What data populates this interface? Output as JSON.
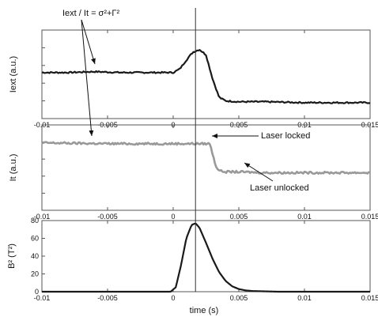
{
  "chart_data": [
    {
      "type": "line",
      "ylabel": "Iext (a.u.)",
      "xlim": [
        -0.01,
        0.015
      ],
      "x_ticks": [
        "-0.01",
        "-0.005",
        "0",
        "0.005",
        "0.01",
        "0.015"
      ],
      "y_ticks": [],
      "ylim": [
        0,
        1
      ],
      "series": [
        {
          "color": "#1a1a1a",
          "x": [
            -0.01,
            -0.008,
            -0.006,
            -0.004,
            -0.002,
            0,
            0.0005,
            0.001,
            0.0015,
            0.002,
            0.0025,
            0.003,
            0.0035,
            0.004,
            0.005,
            0.007,
            0.01,
            0.012,
            0.015
          ],
          "y": [
            0.52,
            0.52,
            0.53,
            0.52,
            0.52,
            0.52,
            0.56,
            0.66,
            0.75,
            0.78,
            0.72,
            0.45,
            0.24,
            0.2,
            0.19,
            0.19,
            0.18,
            0.18,
            0.18
          ]
        }
      ]
    },
    {
      "type": "line",
      "ylabel": "It (a.u.)",
      "xlim": [
        -0.01,
        0.015
      ],
      "x_ticks": [
        "-0.01",
        "-0.005",
        "0",
        "0.005",
        "0.01",
        "0.015"
      ],
      "y_ticks": [],
      "ylim": [
        0,
        1
      ],
      "series": [
        {
          "color": "#999999",
          "x": [
            -0.01,
            -0.005,
            0,
            0.002,
            0.0028,
            0.0031,
            0.0033,
            0.0036,
            0.004,
            0.005,
            0.007,
            0.01,
            0.012,
            0.015
          ],
          "y": [
            0.79,
            0.78,
            0.78,
            0.78,
            0.78,
            0.6,
            0.5,
            0.46,
            0.45,
            0.45,
            0.44,
            0.44,
            0.44,
            0.44
          ]
        }
      ]
    },
    {
      "type": "line",
      "ylabel": "B² (T²)",
      "xlabel": "time (s)",
      "xlim": [
        -0.01,
        0.015
      ],
      "ylim": [
        0,
        80
      ],
      "x_ticks": [
        "-0.01",
        "-0.005",
        "0",
        "0.005",
        "0.01",
        "0.015"
      ],
      "y_ticks": [
        "0",
        "20",
        "40",
        "60",
        "80"
      ],
      "series": [
        {
          "color": "#1a1a1a",
          "x": [
            -0.01,
            -0.002,
            -0.0002,
            0.0002,
            0.0006,
            0.001,
            0.0014,
            0.0017,
            0.002,
            0.0025,
            0.003,
            0.0035,
            0.004,
            0.0045,
            0.005,
            0.0055,
            0.006,
            0.008,
            0.012,
            0.015
          ],
          "y": [
            0,
            0,
            0,
            5,
            30,
            60,
            75,
            77,
            72,
            55,
            37,
            22,
            12,
            6,
            3,
            1.5,
            0.8,
            0,
            0,
            0
          ]
        }
      ]
    }
  ],
  "annotations": {
    "ratio_label": "Iext / It = σ²+Γ²",
    "laser_locked": "Laser locked",
    "laser_unlocked": "Laser unlocked"
  },
  "marker_time": 0.0017
}
